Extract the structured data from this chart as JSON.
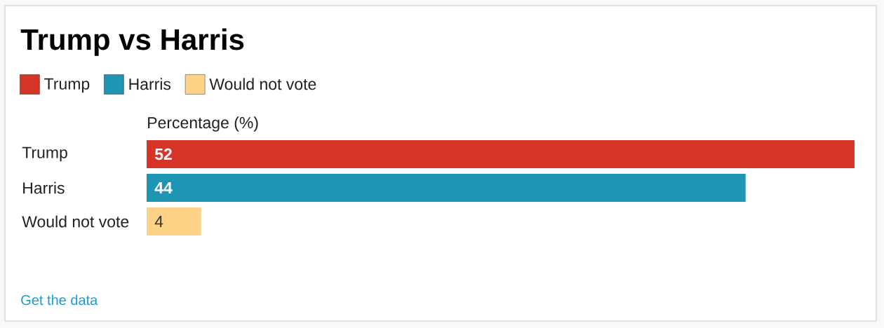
{
  "chart_data": {
    "type": "bar",
    "orientation": "horizontal",
    "title": "Trump vs Harris",
    "xlabel": "Percentage (%)",
    "categories": [
      "Trump",
      "Harris",
      "Would not vote"
    ],
    "series": [
      {
        "name": "Trump",
        "color": "#d53426",
        "values": [
          52,
          null,
          null
        ]
      },
      {
        "name": "Harris",
        "color": "#1e95b3",
        "values": [
          null,
          44,
          null
        ]
      },
      {
        "name": "Would not vote",
        "color": "#fed388",
        "values": [
          null,
          null,
          4
        ]
      }
    ],
    "xlim": [
      0,
      52
    ],
    "tick_labels": "y",
    "data_labels": true,
    "legend": "top left",
    "annotations": [
      "Get the data"
    ]
  }
}
